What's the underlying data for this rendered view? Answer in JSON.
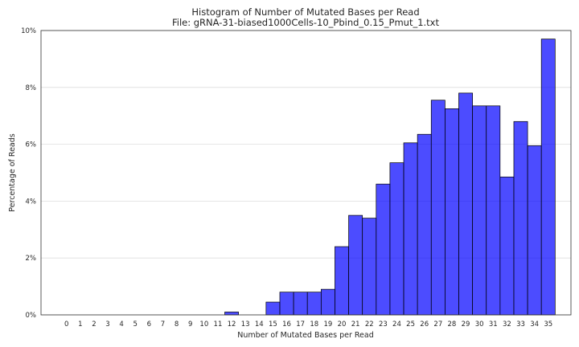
{
  "chart_data": {
    "type": "bar",
    "title": "Histogram of Number of Mutated Bases per Read",
    "subtitle": "File: gRNA-31-biased1000Cells-10_Pbind_0.15_Pmut_1.txt",
    "xlabel": "Number of Mutated Bases per Read",
    "ylabel": "Percentage of Reads",
    "categories": [
      "0",
      "1",
      "2",
      "3",
      "4",
      "5",
      "6",
      "7",
      "8",
      "9",
      "10",
      "11",
      "12",
      "13",
      "14",
      "15",
      "16",
      "17",
      "18",
      "19",
      "20",
      "21",
      "22",
      "23",
      "24",
      "25",
      "26",
      "27",
      "28",
      "29",
      "30",
      "31",
      "32",
      "33",
      "34",
      "35"
    ],
    "values": [
      0,
      0,
      0,
      0,
      0,
      0,
      0,
      0,
      0,
      0,
      0,
      0,
      0.1,
      0,
      0,
      0.45,
      0.8,
      0.8,
      0.8,
      0.9,
      2.4,
      3.5,
      3.4,
      4.6,
      5.35,
      6.05,
      6.35,
      7.55,
      7.25,
      7.8,
      7.35,
      7.35,
      4.85,
      6.8,
      5.95,
      9.7
    ],
    "ylim": [
      0,
      10
    ],
    "yticks": [
      0,
      2,
      4,
      6,
      8,
      10
    ],
    "ytick_labels": [
      "0%",
      "2%",
      "4%",
      "6%",
      "8%",
      "10%"
    ],
    "grid": "horizontal",
    "bar_color": "#0000ff",
    "bar_opacity": 0.7,
    "bar_edge_color": "#000000"
  }
}
